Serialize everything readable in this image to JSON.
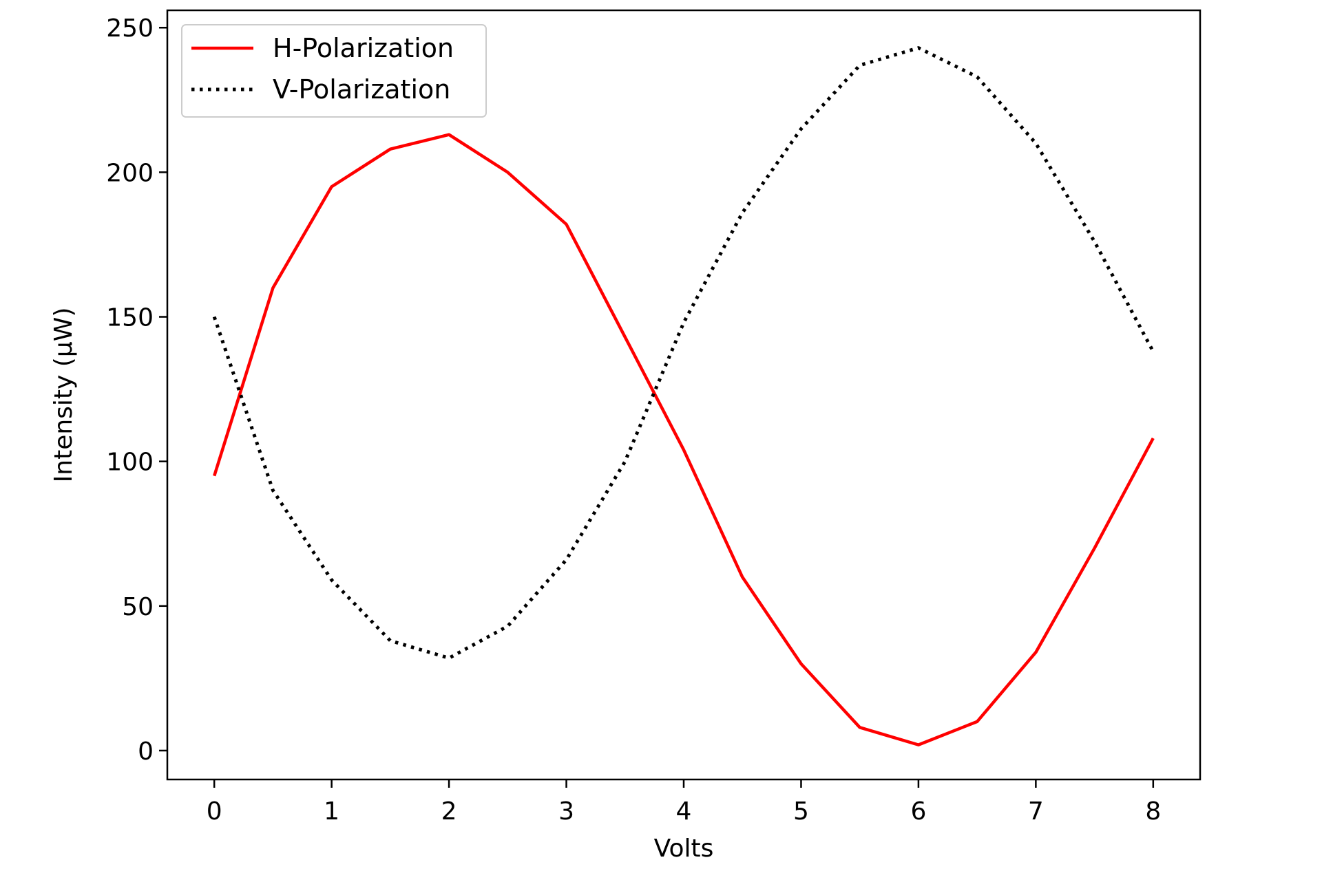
{
  "chart_data": {
    "type": "line",
    "xlabel": "Volts",
    "ylabel": "Intensity (μW)",
    "xlim": [
      -0.4,
      8.4
    ],
    "ylim": [
      -10,
      256
    ],
    "xticks": [
      0,
      1,
      2,
      3,
      4,
      5,
      6,
      7,
      8
    ],
    "yticks": [
      0,
      50,
      100,
      150,
      200,
      250
    ],
    "grid": false,
    "legend_position": "top-left",
    "series": [
      {
        "name": "H-Polarization",
        "color": "#ff0000",
        "style": "solid",
        "x": [
          0,
          0.5,
          1,
          1.5,
          2,
          2.5,
          3,
          3.5,
          4,
          4.5,
          5,
          5.5,
          6,
          6.5,
          7,
          7.5,
          8
        ],
        "y": [
          95,
          160,
          195,
          208,
          213,
          200,
          182,
          143,
          104,
          60,
          30,
          8,
          2,
          10,
          34,
          70,
          108
        ]
      },
      {
        "name": "V-Polarization",
        "color": "#000000",
        "style": "dotted",
        "x": [
          0,
          0.5,
          1,
          1.5,
          2,
          2.5,
          3,
          3.5,
          4,
          4.5,
          5,
          5.5,
          6,
          6.5,
          7,
          7.5,
          8
        ],
        "y": [
          150,
          90,
          59,
          38,
          32,
          43,
          66,
          100,
          148,
          186,
          215,
          237,
          243,
          233,
          210,
          176,
          138
        ]
      }
    ]
  }
}
